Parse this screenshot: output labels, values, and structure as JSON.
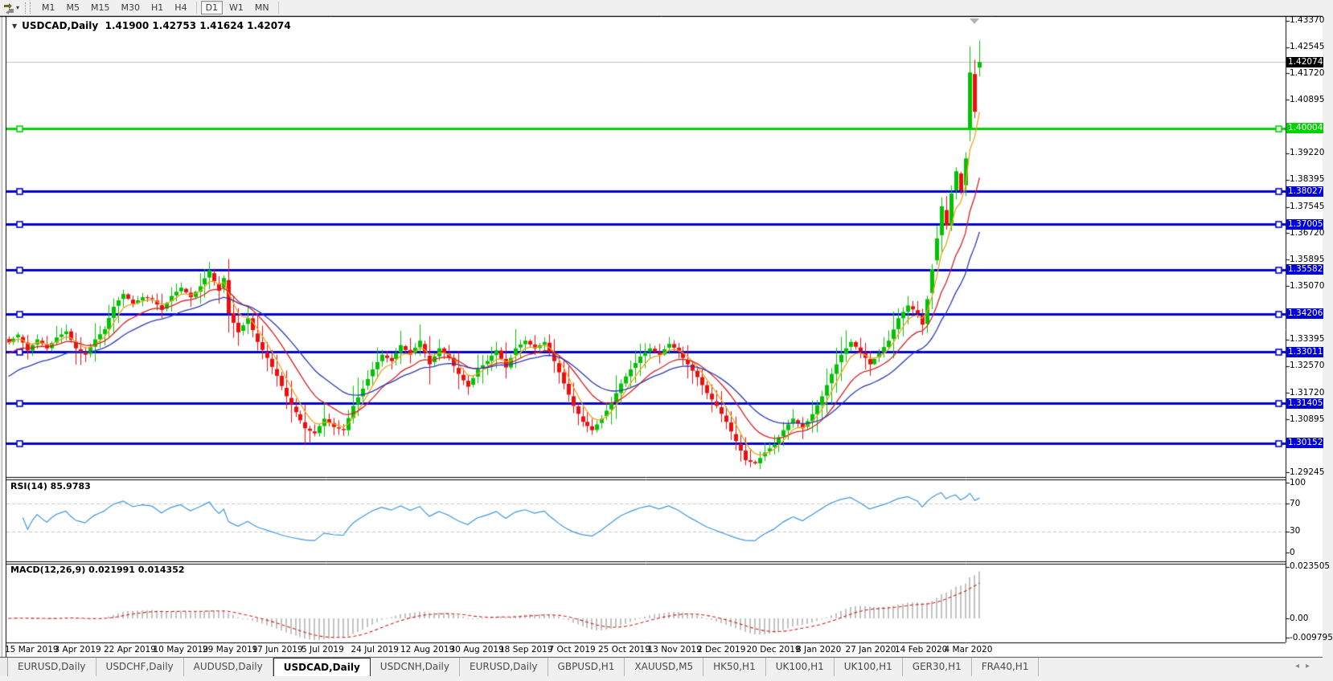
{
  "toolbar": {
    "timeframes": [
      "M1",
      "M5",
      "M15",
      "M30",
      "H1",
      "H4",
      "D1",
      "W1",
      "MN"
    ],
    "active_timeframe": "D1",
    "chart_icon": "chart-profile-icon",
    "dropdown_icon": "▾"
  },
  "window": {
    "title_symbol": "USDCAD,Daily",
    "title_ohlc": "1.41900 1.42753 1.41624 1.42074",
    "dropdown_icon": "▼"
  },
  "price_axis": {
    "ticks": [
      {
        "label": "1.43370",
        "value": 1.4337
      },
      {
        "label": "1.42545",
        "value": 1.42545
      },
      {
        "label": "1.41720",
        "value": 1.4172
      },
      {
        "label": "1.40895",
        "value": 1.40895
      },
      {
        "label": "1.39220",
        "value": 1.3922
      },
      {
        "label": "1.38395",
        "value": 1.38395
      },
      {
        "label": "1.37545",
        "value": 1.37545
      },
      {
        "label": "1.36720",
        "value": 1.3672
      },
      {
        "label": "1.35895",
        "value": 1.35895
      },
      {
        "label": "1.35070",
        "value": 1.3507
      },
      {
        "label": "1.33395",
        "value": 1.33395
      },
      {
        "label": "1.32570",
        "value": 1.3257
      },
      {
        "label": "1.31720",
        "value": 1.3172
      },
      {
        "label": "1.30895",
        "value": 1.30895
      },
      {
        "label": "1.29245",
        "value": 1.29245
      }
    ],
    "current_price": {
      "label": "1.42074",
      "value": 1.42074,
      "bg": "#000000"
    }
  },
  "levels": [
    {
      "label": "1.40004",
      "value": 1.40004,
      "color": "#00d400"
    },
    {
      "label": "1.38027",
      "value": 1.38027,
      "color": "#0000d8"
    },
    {
      "label": "1.37005",
      "value": 1.37005,
      "color": "#0000d8"
    },
    {
      "label": "1.35582",
      "value": 1.35582,
      "color": "#0000d8"
    },
    {
      "label": "1.34206",
      "value": 1.34206,
      "color": "#0000d8"
    },
    {
      "label": "1.33011",
      "value": 1.33011,
      "color": "#0000d8"
    },
    {
      "label": "1.31405",
      "value": 1.31405,
      "color": "#0000d8"
    },
    {
      "label": "1.30152",
      "value": 1.30152,
      "color": "#0000d8"
    }
  ],
  "rsi": {
    "label": "RSI(14) 85.9783",
    "period": 14,
    "current_value": "85.9783",
    "line_color": "#3e97e0",
    "overbought": 70,
    "oversold": 30,
    "ticks": [
      {
        "label": "100",
        "value": 100
      },
      {
        "label": "70",
        "value": 70
      },
      {
        "label": "30",
        "value": 30
      },
      {
        "label": "0",
        "value": 0
      }
    ]
  },
  "macd": {
    "label": "MACD(12,26,9) 0.021991 0.014352",
    "fast": 12,
    "slow": 26,
    "signal": 9,
    "macd_value": "0.021991",
    "signal_value": "0.014352",
    "hist_color": "#c2c2c2",
    "signal_color": "#d41f1f",
    "ticks": [
      {
        "label": "0.023505",
        "value": 0.023505
      },
      {
        "label": "0.00",
        "value": 0
      },
      {
        "label": "-0.009795",
        "value": -0.009795
      }
    ]
  },
  "date_axis": {
    "labels": [
      "15 Mar 2019",
      "3 Apr 2019",
      "22 Apr 2019",
      "10 May 2019",
      "29 May 2019",
      "17 Jun 2019",
      "5 Jul 2019",
      "24 Jul 2019",
      "12 Aug 2019",
      "30 Aug 2019",
      "18 Sep 2019",
      "7 Oct 2019",
      "25 Oct 2019",
      "13 Nov 2019",
      "2 Dec 2019",
      "20 Dec 2019",
      "8 Jan 2020",
      "27 Jan 2020",
      "14 Feb 2020",
      "4 Mar 2020"
    ]
  },
  "tabs": {
    "items": [
      "EURUSD,Daily",
      "USDCHF,Daily",
      "AUDUSD,Daily",
      "USDCAD,Daily",
      "USDCNH,Daily",
      "EURUSD,Daily",
      "GBPUSD,H1",
      "XAUUSD,M5",
      "HK50,H1",
      "UK100,H1",
      "UK100,H1",
      "GER30,H1",
      "FRA40,H1"
    ],
    "active_index": 3,
    "scroll_left_icon": "◂",
    "scroll_right_icon": "▸"
  },
  "chart_data": {
    "type": "candlestick",
    "symbol": "USDCAD",
    "timeframe": "Daily",
    "up_color": "#00c400",
    "down_color": "#ee0e0e",
    "current_price_line_color": "#c0c0c0",
    "last_bar": {
      "open": 1.419,
      "high": 1.42753,
      "low": 1.41624,
      "close": 1.42074
    },
    "bars": 204,
    "close_anchors": [
      [
        0,
        1.333
      ],
      [
        2,
        1.3355
      ],
      [
        4,
        1.3305
      ],
      [
        6,
        1.334
      ],
      [
        8,
        1.3312
      ],
      [
        10,
        1.3346
      ],
      [
        12,
        1.3365
      ],
      [
        14,
        1.3312
      ],
      [
        16,
        1.3292
      ],
      [
        18,
        1.334
      ],
      [
        20,
        1.3372
      ],
      [
        22,
        1.3442
      ],
      [
        24,
        1.3482
      ],
      [
        26,
        1.3452
      ],
      [
        28,
        1.3472
      ],
      [
        30,
        1.3466
      ],
      [
        32,
        1.3432
      ],
      [
        34,
        1.3476
      ],
      [
        36,
        1.3502
      ],
      [
        38,
        1.3472
      ],
      [
        40,
        1.3506
      ],
      [
        42,
        1.3556
      ],
      [
        43,
        1.3522
      ],
      [
        44,
        1.3492
      ],
      [
        45,
        1.3532
      ],
      [
        46,
        1.3422
      ],
      [
        48,
        1.3362
      ],
      [
        50,
        1.3406
      ],
      [
        52,
        1.3332
      ],
      [
        54,
        1.3282
      ],
      [
        56,
        1.3226
      ],
      [
        58,
        1.3162
      ],
      [
        60,
        1.3112
      ],
      [
        62,
        1.3062
      ],
      [
        64,
        1.3046
      ],
      [
        66,
        1.3092
      ],
      [
        68,
        1.3066
      ],
      [
        70,
        1.3056
      ],
      [
        72,
        1.3132
      ],
      [
        74,
        1.3186
      ],
      [
        76,
        1.3246
      ],
      [
        78,
        1.3292
      ],
      [
        80,
        1.3272
      ],
      [
        82,
        1.3322
      ],
      [
        84,
        1.3292
      ],
      [
        86,
        1.3336
      ],
      [
        88,
        1.3262
      ],
      [
        90,
        1.3312
      ],
      [
        92,
        1.3282
      ],
      [
        94,
        1.3232
      ],
      [
        96,
        1.3192
      ],
      [
        98,
        1.3246
      ],
      [
        100,
        1.3272
      ],
      [
        102,
        1.3306
      ],
      [
        104,
        1.3252
      ],
      [
        106,
        1.3312
      ],
      [
        108,
        1.3336
      ],
      [
        110,
        1.3312
      ],
      [
        112,
        1.3332
      ],
      [
        114,
        1.3272
      ],
      [
        116,
        1.3202
      ],
      [
        118,
        1.3132
      ],
      [
        120,
        1.3082
      ],
      [
        122,
        1.3056
      ],
      [
        124,
        1.3092
      ],
      [
        126,
        1.3142
      ],
      [
        128,
        1.3202
      ],
      [
        130,
        1.3246
      ],
      [
        132,
        1.3286
      ],
      [
        134,
        1.3312
      ],
      [
        136,
        1.3292
      ],
      [
        138,
        1.3326
      ],
      [
        140,
        1.3302
      ],
      [
        142,
        1.3262
      ],
      [
        144,
        1.3222
      ],
      [
        146,
        1.3172
      ],
      [
        148,
        1.3132
      ],
      [
        150,
        1.3082
      ],
      [
        152,
        1.3022
      ],
      [
        154,
        1.2962
      ],
      [
        156,
        1.2952
      ],
      [
        158,
        1.2986
      ],
      [
        160,
        1.3012
      ],
      [
        162,
        1.3056
      ],
      [
        164,
        1.3092
      ],
      [
        166,
        1.3062
      ],
      [
        168,
        1.3106
      ],
      [
        170,
        1.3162
      ],
      [
        172,
        1.3232
      ],
      [
        174,
        1.3292
      ],
      [
        176,
        1.3332
      ],
      [
        178,
        1.3302
      ],
      [
        180,
        1.3262
      ],
      [
        182,
        1.3296
      ],
      [
        184,
        1.3336
      ],
      [
        186,
        1.3406
      ],
      [
        188,
        1.3446
      ],
      [
        190,
        1.3422
      ],
      [
        191,
        1.3386
      ],
      [
        192,
        1.3466
      ],
      [
        193,
        1.356
      ],
      [
        194,
        1.3656
      ],
      [
        195,
        1.3756
      ],
      [
        196,
        1.3696
      ],
      [
        197,
        1.3796
      ],
      [
        198,
        1.3866
      ],
      [
        199,
        1.3806
      ],
      [
        200,
        1.3906
      ],
      [
        201,
        1.4175
      ],
      [
        202,
        1.4052
      ],
      [
        203,
        1.42074
      ]
    ],
    "explicit_bars": {
      "201": {
        "o": 1.3998,
        "h": 1.4256,
        "l": 1.396,
        "c": 1.4175
      },
      "202": {
        "o": 1.417,
        "h": 1.4215,
        "l": 1.4032,
        "c": 1.4052
      },
      "203": {
        "o": 1.419,
        "h": 1.42753,
        "l": 1.41624,
        "c": 1.42074
      }
    },
    "moving_averages": [
      {
        "name": "ma-fast",
        "period": 5,
        "color": "#eda21f",
        "seed_offset": 0
      },
      {
        "name": "ma-mid",
        "period": 13,
        "color": "#d42222",
        "seed_offset": -0.004
      },
      {
        "name": "ma-slow",
        "period": 24,
        "color": "#2a3ab4",
        "seed_offset": -0.0115
      }
    ]
  }
}
